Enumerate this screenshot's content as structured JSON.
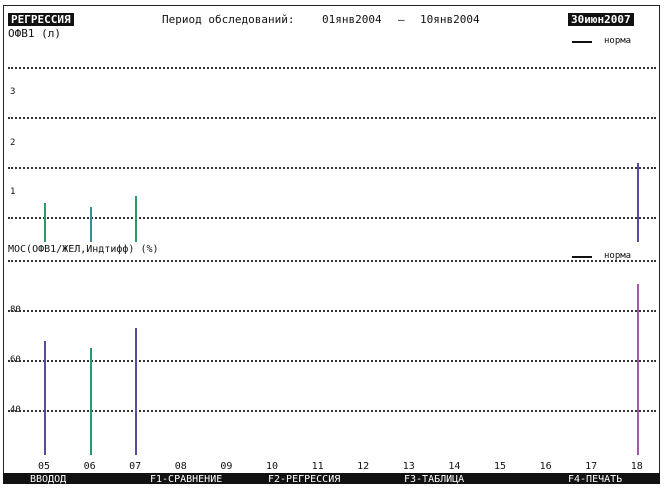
{
  "header": {
    "mode_badge": "РЕГРЕССИЯ",
    "period_label": "Период обследований:",
    "period_from": "01янв2004",
    "period_dash": "–",
    "period_to": "10янв2004",
    "date_badge": "30июн2007"
  },
  "panels": [
    {
      "title": "ОФВ1 (л)",
      "legend": "норма",
      "y_ticks": [
        "3",
        "2",
        "1"
      ]
    },
    {
      "title": "МОС(ОФВ1/ЖЕЛ,Индтифф) (%)",
      "legend": "норма",
      "y_ticks": [
        "40",
        "60",
        "80"
      ]
    }
  ],
  "x_ticks": [
    "05",
    "06",
    "07",
    "08",
    "09",
    "10",
    "11",
    "12",
    "13",
    "14",
    "15",
    "16",
    "17",
    "18"
  ],
  "menu": [
    {
      "label": "ВВОДОД"
    },
    {
      "label": "F1-СРАВНЕНИЕ"
    },
    {
      "label": "F2-РЕГРЕССИЯ"
    },
    {
      "label": "F3-ТАБЛИЦА"
    },
    {
      "label": "F4-ПЕЧАТЬ"
    }
  ],
  "chart_data": [
    {
      "type": "bar",
      "title": "ОФВ1 (л)",
      "x": [
        "05",
        "06",
        "07",
        "18"
      ],
      "values": [
        0.9,
        0.8,
        1.05,
        1.8
      ],
      "colors": [
        "#2a9a6a",
        "#3a8aa0",
        "#2a9a6a",
        "#5a4a9a"
      ],
      "ylim": [
        0,
        4
      ],
      "legend": "норма"
    },
    {
      "type": "bar",
      "title": "МОС(ОФВ1/ЖЕЛ,Индтифф) (%)",
      "x": [
        "05",
        "06",
        "07",
        "18"
      ],
      "values": [
        70,
        66,
        78,
        105
      ],
      "colors": [
        "#5a4a9a",
        "#2a9a6a",
        "#5a4a9a",
        "#a05aa0"
      ],
      "ylim": [
        0,
        120
      ],
      "legend": "норма"
    }
  ]
}
